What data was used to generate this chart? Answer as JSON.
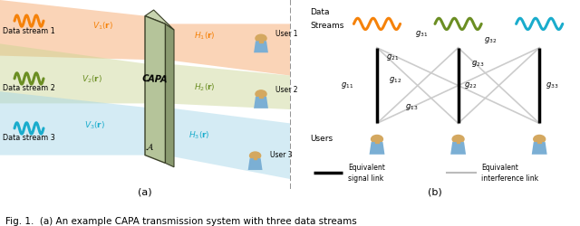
{
  "fig_caption": "Fig. 1.  (a) An example CAPA transmission system with three data streams",
  "label_a": "(a)",
  "label_b": "(b)",
  "color_stream1": "#F5820A",
  "color_stream2": "#6B8E23",
  "color_stream3": "#1AACCC",
  "color_capa_face": "#B5C49A",
  "color_capa_side": "#8A9A70",
  "color_capa_top": "#C8D4B0",
  "color_capa_edge": "#3A4028",
  "color_beam1_left": "#F5A060",
  "color_beam2_left": "#C8D490",
  "color_beam3_left": "#A0D4E8",
  "color_beam1_right": "#F5A060",
  "color_beam2_right": "#C8D490",
  "color_beam3_right": "#A0D4E8",
  "alpha_beam": 0.45,
  "color_signal_link": "#000000",
  "color_interference_link": "#BBBBBB",
  "color_user_body": "#7BAFD4",
  "color_user_head": "#D4A860",
  "streams": [
    "Data stream 1",
    "Data stream 2",
    "Data stream 3"
  ],
  "user_labels": [
    "User 1",
    "User 2",
    "User 3"
  ]
}
